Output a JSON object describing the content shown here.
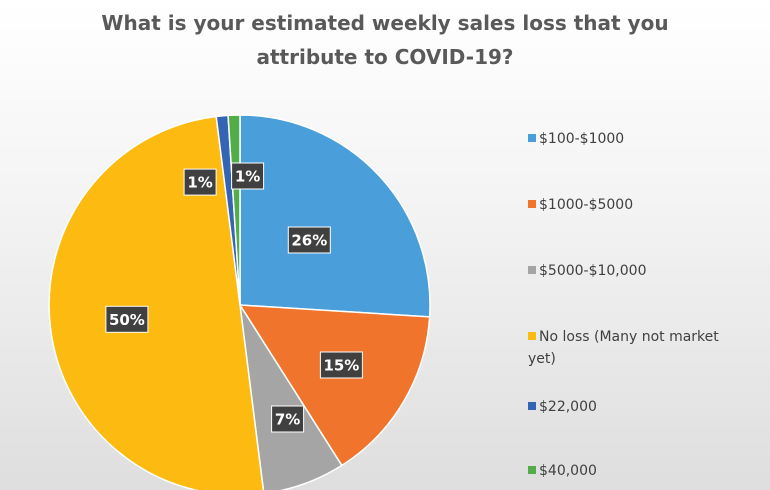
{
  "chart_data": {
    "type": "pie",
    "title": "What is your estimated weekly sales loss that you attribute to COVID-19?",
    "title_lines": [
      "What is your estimated weekly sales loss that you",
      "attribute to COVID-19?"
    ],
    "categories": [
      "$100-$1000",
      "$1000-$5000",
      "$5000-$10,000",
      "No loss (Many not market yet)",
      "$22,000",
      "$40,000"
    ],
    "legend_lines": [
      [
        "$100-$1000"
      ],
      [
        "$1000-$5000"
      ],
      [
        "$5000-$10,000"
      ],
      [
        "No loss (Many not market",
        "yet)"
      ],
      [
        "$22,000"
      ],
      [
        "$40,000"
      ]
    ],
    "values": [
      26,
      15,
      7,
      50,
      1,
      1
    ],
    "data_labels": [
      "26%",
      "15%",
      "7%",
      "50%",
      "1%",
      "1%"
    ],
    "colors": [
      "#4a9fda",
      "#f0742b",
      "#a5a5a5",
      "#fdba11",
      "#3464b4",
      "#52ad48"
    ],
    "legend_position": "right"
  }
}
